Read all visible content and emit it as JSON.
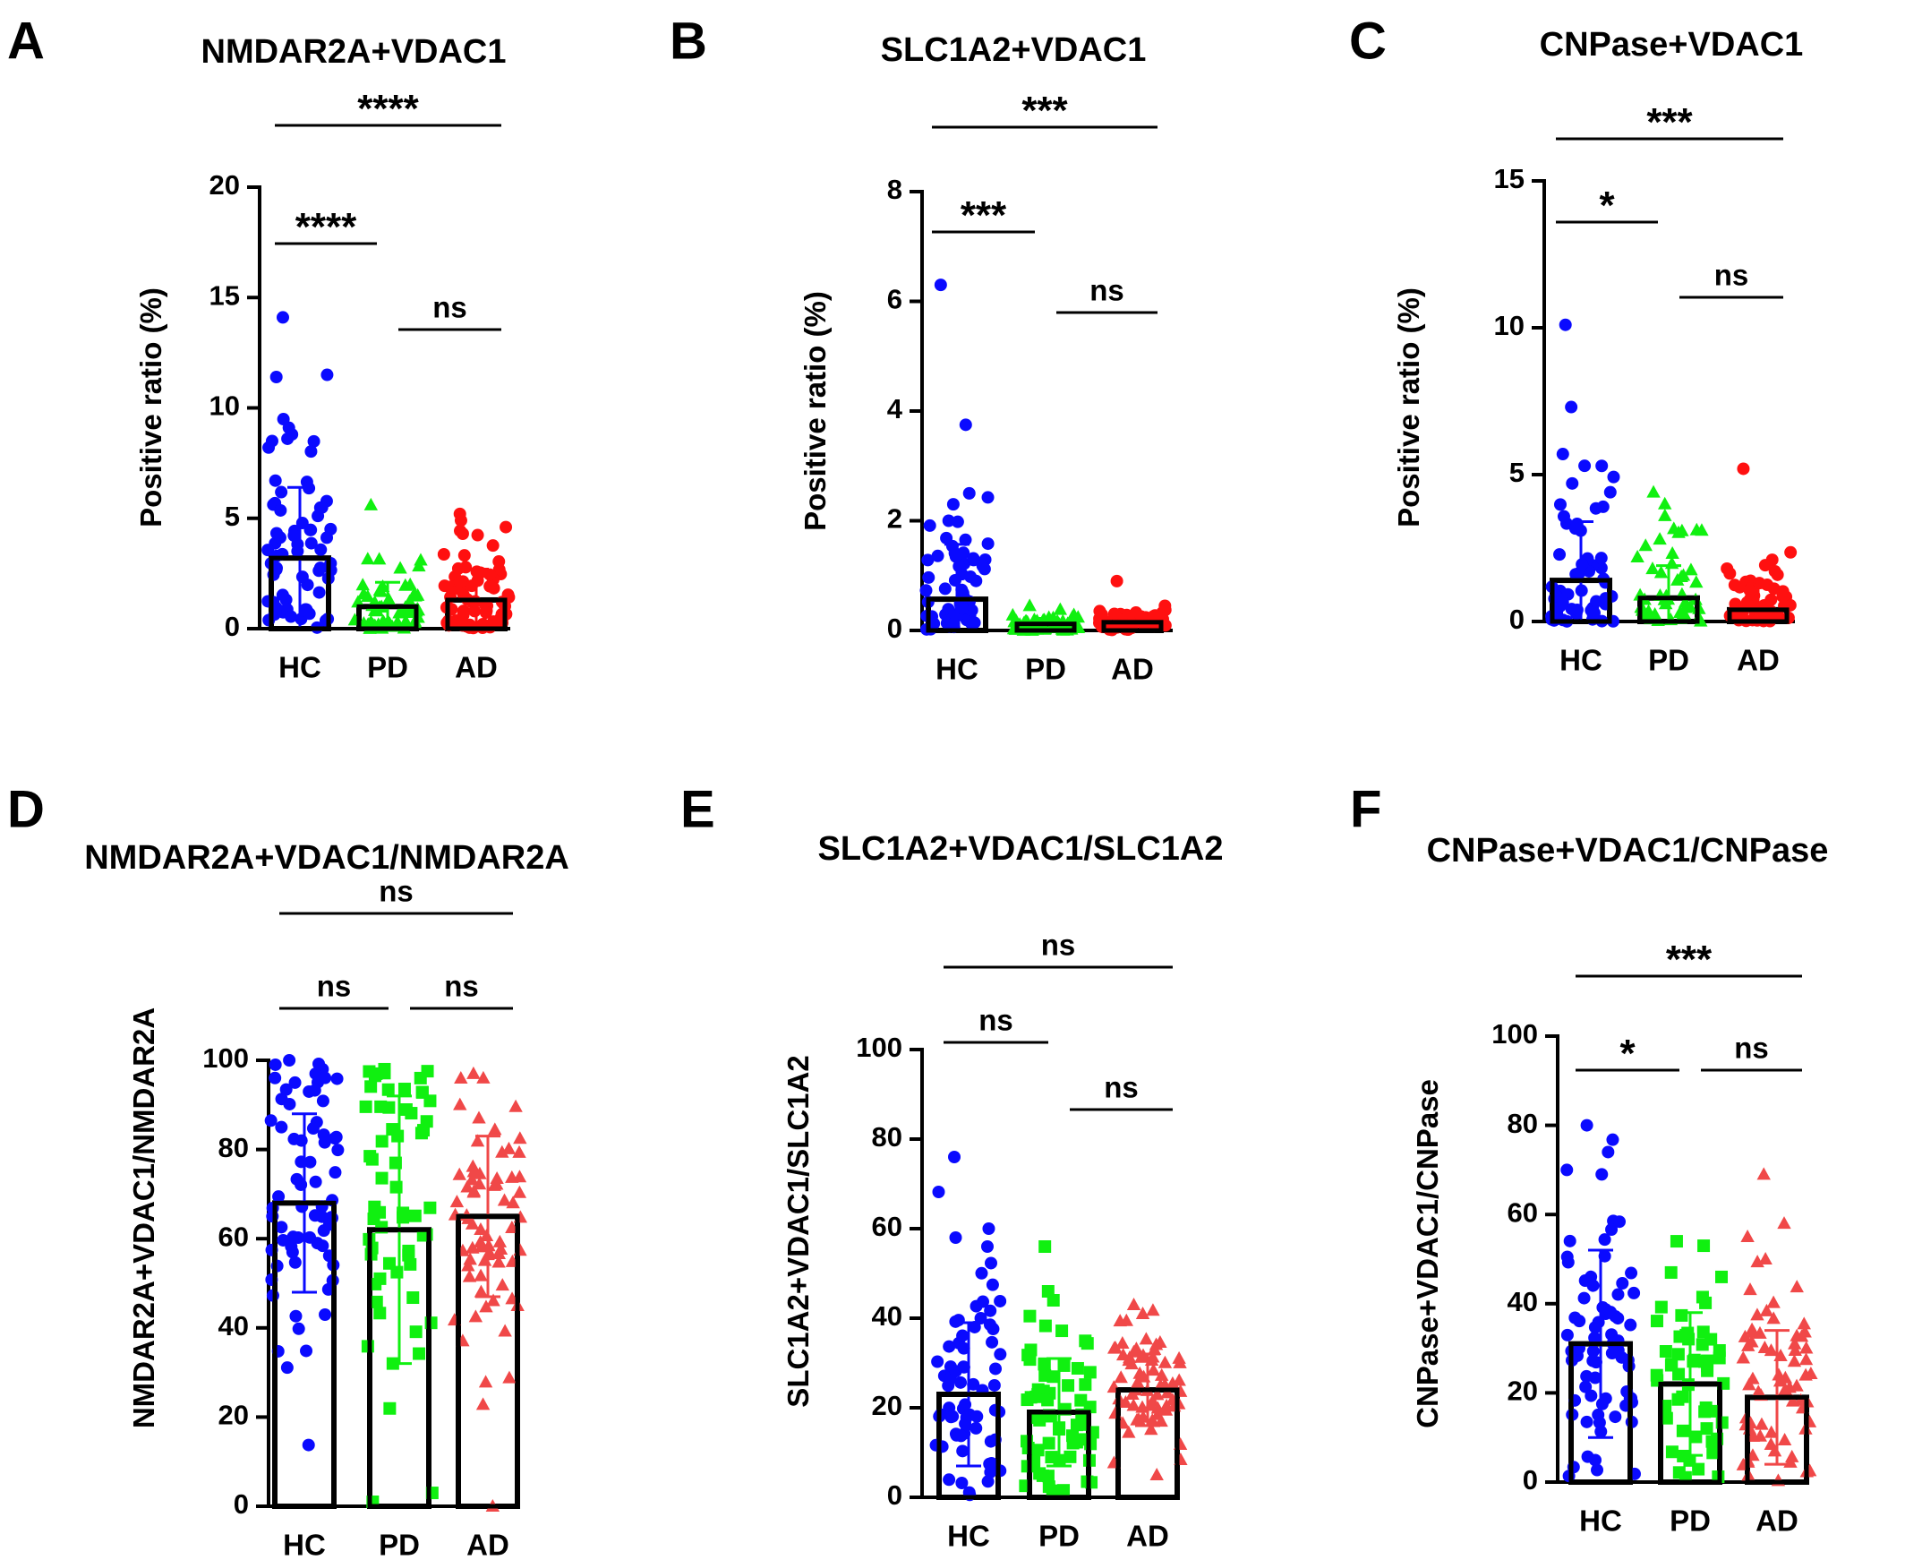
{
  "colors": {
    "HC": "#0a0aff",
    "PD": "#10f010",
    "AD_top": "#ff1010",
    "AD_bottom": "#f04848"
  },
  "markers": {
    "HC": "circle",
    "PD_top": "triangle",
    "AD_top": "circle",
    "PD_bottom": "square",
    "AD_bottom": "triangle"
  },
  "chart_data": [
    {
      "id": "A",
      "letter": "A",
      "type": "bar",
      "title": "NMDAR2A+VDAC1",
      "ylabel": "Positive ratio (%)",
      "ylim": [
        0,
        20
      ],
      "yticks": [
        0,
        5,
        10,
        15,
        20
      ],
      "categories": [
        "HC",
        "PD",
        "AD"
      ],
      "series": [
        {
          "category": "HC",
          "mean": 3.2,
          "sd": 3.2,
          "n": 70,
          "seed": 11,
          "max": 14.1,
          "highlights": [
            14.1,
            11.5,
            11.4,
            9.1,
            8.8,
            8.5
          ]
        },
        {
          "category": "PD",
          "mean": 1.0,
          "sd": 1.1,
          "n": 60,
          "seed": 23,
          "max": 5.6,
          "highlights": [
            5.6,
            3.1
          ]
        },
        {
          "category": "AD",
          "mean": 1.3,
          "sd": 1.4,
          "n": 70,
          "seed": 37,
          "max": 5.2,
          "highlights": [
            5.2,
            4.9,
            4.6,
            4.3
          ]
        }
      ],
      "comparisons": [
        {
          "from": "HC",
          "to": "AD",
          "label": "****",
          "level": 1
        },
        {
          "from": "HC",
          "to": "PD",
          "label": "****",
          "level": 2
        },
        {
          "from": "PD",
          "to": "AD",
          "label": "ns",
          "level": 3
        }
      ]
    },
    {
      "id": "B",
      "letter": "B",
      "type": "bar",
      "title": "SLC1A2+VDAC1",
      "ylabel": "Positive ratio (%)",
      "ylim": [
        0,
        8
      ],
      "yticks": [
        0,
        2,
        4,
        6,
        8
      ],
      "categories": [
        "HC",
        "PD",
        "AD"
      ],
      "series": [
        {
          "category": "HC",
          "mean": 0.57,
          "sd": 1.0,
          "n": 60,
          "seed": 41,
          "max": 6.3,
          "highlights": [
            6.3,
            3.75,
            2.5,
            2.3,
            2.0
          ]
        },
        {
          "category": "PD",
          "mean": 0.12,
          "sd": 0.1,
          "n": 60,
          "seed": 53,
          "max": 0.45,
          "highlights": [
            0.45,
            0.38
          ]
        },
        {
          "category": "AD",
          "mean": 0.15,
          "sd": 0.12,
          "n": 60,
          "seed": 67,
          "max": 0.9,
          "highlights": [
            0.9,
            0.45
          ]
        }
      ],
      "comparisons": [
        {
          "from": "HC",
          "to": "AD",
          "label": "***",
          "level": 1
        },
        {
          "from": "HC",
          "to": "PD",
          "label": "***",
          "level": 2
        },
        {
          "from": "PD",
          "to": "AD",
          "label": "ns",
          "level": 3
        }
      ]
    },
    {
      "id": "C",
      "letter": "C",
      "type": "bar",
      "title": "CNPase+VDAC1",
      "ylabel": "Positive ratio (%)",
      "ylim": [
        0,
        15
      ],
      "yticks": [
        0,
        5,
        10,
        15
      ],
      "categories": [
        "HC",
        "PD",
        "AD"
      ],
      "series": [
        {
          "category": "HC",
          "mean": 1.4,
          "sd": 2.0,
          "n": 60,
          "seed": 71,
          "max": 10.1,
          "highlights": [
            10.1,
            7.3,
            5.7,
            5.3,
            4.7,
            4.4
          ]
        },
        {
          "category": "PD",
          "mean": 0.8,
          "sd": 1.1,
          "n": 50,
          "seed": 83,
          "max": 4.4,
          "highlights": [
            4.4,
            4.0,
            3.6,
            3.1,
            2.8
          ]
        },
        {
          "category": "AD",
          "mean": 0.4,
          "sd": 0.75,
          "n": 60,
          "seed": 97,
          "max": 5.2,
          "highlights": [
            5.2,
            2.1,
            1.8
          ]
        }
      ],
      "comparisons": [
        {
          "from": "HC",
          "to": "AD",
          "label": "***",
          "level": 1
        },
        {
          "from": "HC",
          "to": "PD",
          "label": "*",
          "level": 2
        },
        {
          "from": "PD",
          "to": "AD",
          "label": "ns",
          "level": 3
        }
      ]
    },
    {
      "id": "D",
      "letter": "D",
      "type": "bar",
      "title": "NMDAR2A+VDAC1/NMDAR2A",
      "ylabel": "NMDAR2A+VDAC1/NMDAR2A",
      "ylim": [
        0,
        100
      ],
      "yticks": [
        0,
        20,
        40,
        60,
        80,
        100
      ],
      "categories": [
        "HC",
        "PD",
        "AD"
      ],
      "series": [
        {
          "category": "HC",
          "mean": 68,
          "sd": 20,
          "n": 70,
          "seed": 101,
          "max": 100,
          "highlights": [
            100,
            99,
            98,
            97,
            95
          ]
        },
        {
          "category": "PD",
          "mean": 62,
          "sd": 30,
          "n": 60,
          "seed": 113,
          "max": 98,
          "highlights": [
            98,
            97,
            3,
            1
          ]
        },
        {
          "category": "AD",
          "mean": 65,
          "sd": 18,
          "n": 70,
          "seed": 127,
          "max": 97,
          "highlights": [
            97,
            96,
            0
          ]
        }
      ],
      "comparisons": [
        {
          "from": "HC",
          "to": "AD",
          "label": "ns",
          "level": 1
        },
        {
          "from": "HC",
          "to": "PD",
          "label": "ns",
          "level": 2
        },
        {
          "from": "PD",
          "to": "AD",
          "label": "ns",
          "level": 2
        }
      ]
    },
    {
      "id": "E",
      "letter": "E",
      "type": "bar",
      "title": "SLC1A2+VDAC1/SLC1A2",
      "ylabel": "SLC1A2+VDAC1/SLC1A2",
      "ylim": [
        0,
        100
      ],
      "yticks": [
        0,
        20,
        40,
        60,
        80,
        100
      ],
      "categories": [
        "HC",
        "PD",
        "AD"
      ],
      "series": [
        {
          "category": "HC",
          "mean": 23,
          "sd": 16,
          "n": 70,
          "seed": 131,
          "max": 76,
          "highlights": [
            76,
            60,
            58,
            56
          ]
        },
        {
          "category": "PD",
          "mean": 19,
          "sd": 12,
          "n": 65,
          "seed": 137,
          "max": 56,
          "highlights": [
            56,
            46,
            44
          ]
        },
        {
          "category": "AD",
          "mean": 24,
          "sd": 8,
          "n": 70,
          "seed": 149,
          "max": 43,
          "highlights": [
            43,
            41,
            5
          ]
        }
      ],
      "comparisons": [
        {
          "from": "HC",
          "to": "AD",
          "label": "ns",
          "level": 1
        },
        {
          "from": "HC",
          "to": "PD",
          "label": "ns",
          "level": 2
        },
        {
          "from": "PD",
          "to": "AD",
          "label": "ns",
          "level": 3
        }
      ]
    },
    {
      "id": "F",
      "letter": "F",
      "type": "bar",
      "title": "CNPase+VDAC1/CNPase",
      "ylabel": "CNPase+VDAC1/CNPase",
      "ylim": [
        0,
        100
      ],
      "yticks": [
        0,
        20,
        40,
        60,
        80,
        100
      ],
      "categories": [
        "HC",
        "PD",
        "AD"
      ],
      "series": [
        {
          "category": "HC",
          "mean": 31,
          "sd": 21,
          "n": 75,
          "seed": 151,
          "max": 80,
          "highlights": [
            80,
            74,
            70,
            69
          ]
        },
        {
          "category": "PD",
          "mean": 22,
          "sd": 16,
          "n": 55,
          "seed": 163,
          "max": 54,
          "highlights": [
            54,
            53,
            47,
            46
          ]
        },
        {
          "category": "AD",
          "mean": 19,
          "sd": 15,
          "n": 70,
          "seed": 173,
          "max": 69,
          "highlights": [
            69,
            58,
            55,
            50
          ]
        }
      ],
      "comparisons": [
        {
          "from": "HC",
          "to": "AD",
          "label": "***",
          "level": 1
        },
        {
          "from": "HC",
          "to": "PD",
          "label": "*",
          "level": 2
        },
        {
          "from": "PD",
          "to": "AD",
          "label": "ns",
          "level": 2
        }
      ]
    }
  ]
}
